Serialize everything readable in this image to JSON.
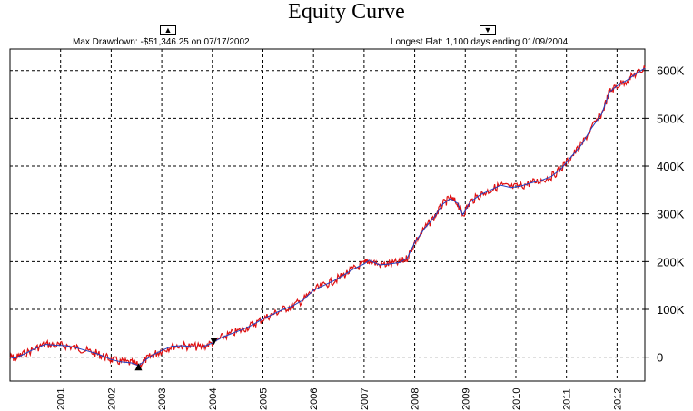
{
  "chart_data": {
    "type": "line",
    "title": "Equity Curve",
    "xlabel": "",
    "ylabel": "",
    "annotations": {
      "max_drawdown": {
        "text": "Max Drawdown: -$51,346.25 on 07/17/2002",
        "marker": "▲",
        "year": 2002.54,
        "value": -20000
      },
      "longest_flat": {
        "text": "Longest Flat: 1,100 days ending 01/09/2004",
        "marker": "▼",
        "year": 2004.03,
        "value": 33000
      }
    },
    "x_ticks": [
      {
        "year": 2001,
        "label": "2001"
      },
      {
        "year": 2002,
        "label": "2002"
      },
      {
        "year": 2003,
        "label": "2003"
      },
      {
        "year": 2004,
        "label": "2004"
      },
      {
        "year": 2005,
        "label": "2005"
      },
      {
        "year": 2006,
        "label": "2006"
      },
      {
        "year": 2007,
        "label": "2007"
      },
      {
        "year": 2008,
        "label": "2008"
      },
      {
        "year": 2009,
        "label": "2009"
      },
      {
        "year": 2010,
        "label": "2010"
      },
      {
        "year": 2011,
        "label": "2011"
      },
      {
        "year": 2012,
        "label": "2012"
      }
    ],
    "y_ticks": [
      {
        "value": 0,
        "label": "0"
      },
      {
        "value": 100000,
        "label": "100K"
      },
      {
        "value": 200000,
        "label": "200K"
      },
      {
        "value": 300000,
        "label": "300K"
      },
      {
        "value": 400000,
        "label": "400K"
      },
      {
        "value": 500000,
        "label": "500K"
      },
      {
        "value": 600000,
        "label": "600K"
      }
    ],
    "xlim": [
      2000.0,
      2012.55
    ],
    "ylim": [
      -50000,
      645000
    ],
    "grid": true,
    "colors": {
      "equity": "#e01010",
      "trend": "#2040c0",
      "grid": "#000000",
      "zero_line": "#000000"
    },
    "series": [
      {
        "x": [
          2000.0,
          2000.1,
          2000.25,
          2000.5,
          2000.7,
          2000.9,
          2001.1,
          2001.3,
          2001.5,
          2001.7,
          2001.85,
          2002.0,
          2002.2,
          2002.4,
          2002.54,
          2002.7,
          2002.85,
          2003.0,
          2003.2,
          2003.4,
          2003.6,
          2003.8,
          2004.0,
          2004.2,
          2004.4,
          2004.6,
          2004.8,
          2005.0,
          2005.2,
          2005.4,
          2005.6,
          2005.8,
          2006.0,
          2006.2,
          2006.4,
          2006.6,
          2006.8,
          2007.0,
          2007.1,
          2007.3,
          2007.5,
          2007.7,
          2007.85,
          2008.0,
          2008.2,
          2008.4,
          2008.55,
          2008.7,
          2008.85,
          2008.95,
          2009.1,
          2009.3,
          2009.5,
          2009.7,
          2009.9,
          2010.1,
          2010.3,
          2010.5,
          2010.7,
          2010.9,
          2011.1,
          2011.3,
          2011.5,
          2011.7,
          2011.85,
          2012.0,
          2012.2,
          2012.4,
          2012.55
        ],
        "values": [
          0,
          -2000,
          5000,
          18000,
          27000,
          25000,
          24000,
          20000,
          14000,
          8000,
          2000,
          -5000,
          -10000,
          -12000,
          -18000,
          -4000,
          6000,
          14000,
          23000,
          24000,
          22000,
          21000,
          30000,
          42000,
          50000,
          58000,
          68000,
          80000,
          90000,
          100000,
          108000,
          120000,
          140000,
          150000,
          160000,
          172000,
          185000,
          195000,
          203000,
          193000,
          195000,
          198000,
          207000,
          240000,
          270000,
          295000,
          320000,
          332000,
          322000,
          298000,
          325000,
          340000,
          350000,
          360000,
          355000,
          358000,
          365000,
          370000,
          378000,
          395000,
          420000,
          445000,
          480000,
          510000,
          555000,
          568000,
          580000,
          595000,
          605000
        ]
      }
    ]
  }
}
